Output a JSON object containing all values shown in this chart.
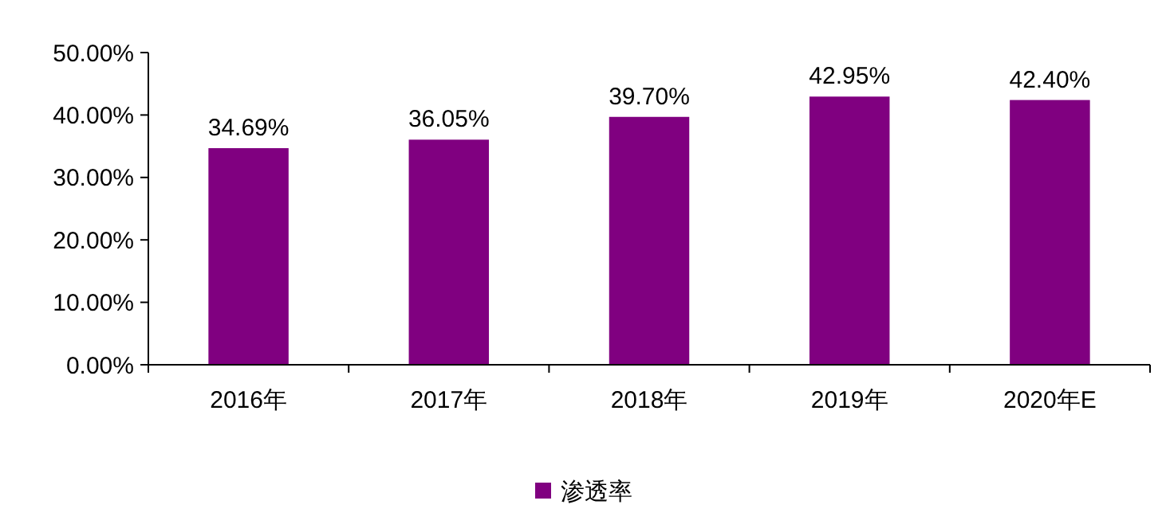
{
  "chart_data": {
    "type": "bar",
    "categories": [
      "2016年",
      "2017年",
      "2018年",
      "2019年",
      "2020年E"
    ],
    "series": [
      {
        "name": "渗透率",
        "color": "#800080",
        "values": [
          34.69,
          36.05,
          39.7,
          42.95,
          42.4
        ],
        "value_labels": [
          "34.69%",
          "36.05%",
          "39.70%",
          "42.95%",
          "42.40%"
        ]
      }
    ],
    "ylim": [
      0,
      50
    ],
    "yticks": [
      {
        "value": 0,
        "label": "0.00%"
      },
      {
        "value": 10,
        "label": "10.00%"
      },
      {
        "value": 20,
        "label": "20.00%"
      },
      {
        "value": 30,
        "label": "30.00%"
      },
      {
        "value": 40,
        "label": "40.00%"
      },
      {
        "value": 50,
        "label": "50.00%"
      }
    ],
    "grid": false,
    "legend": "bottom"
  }
}
